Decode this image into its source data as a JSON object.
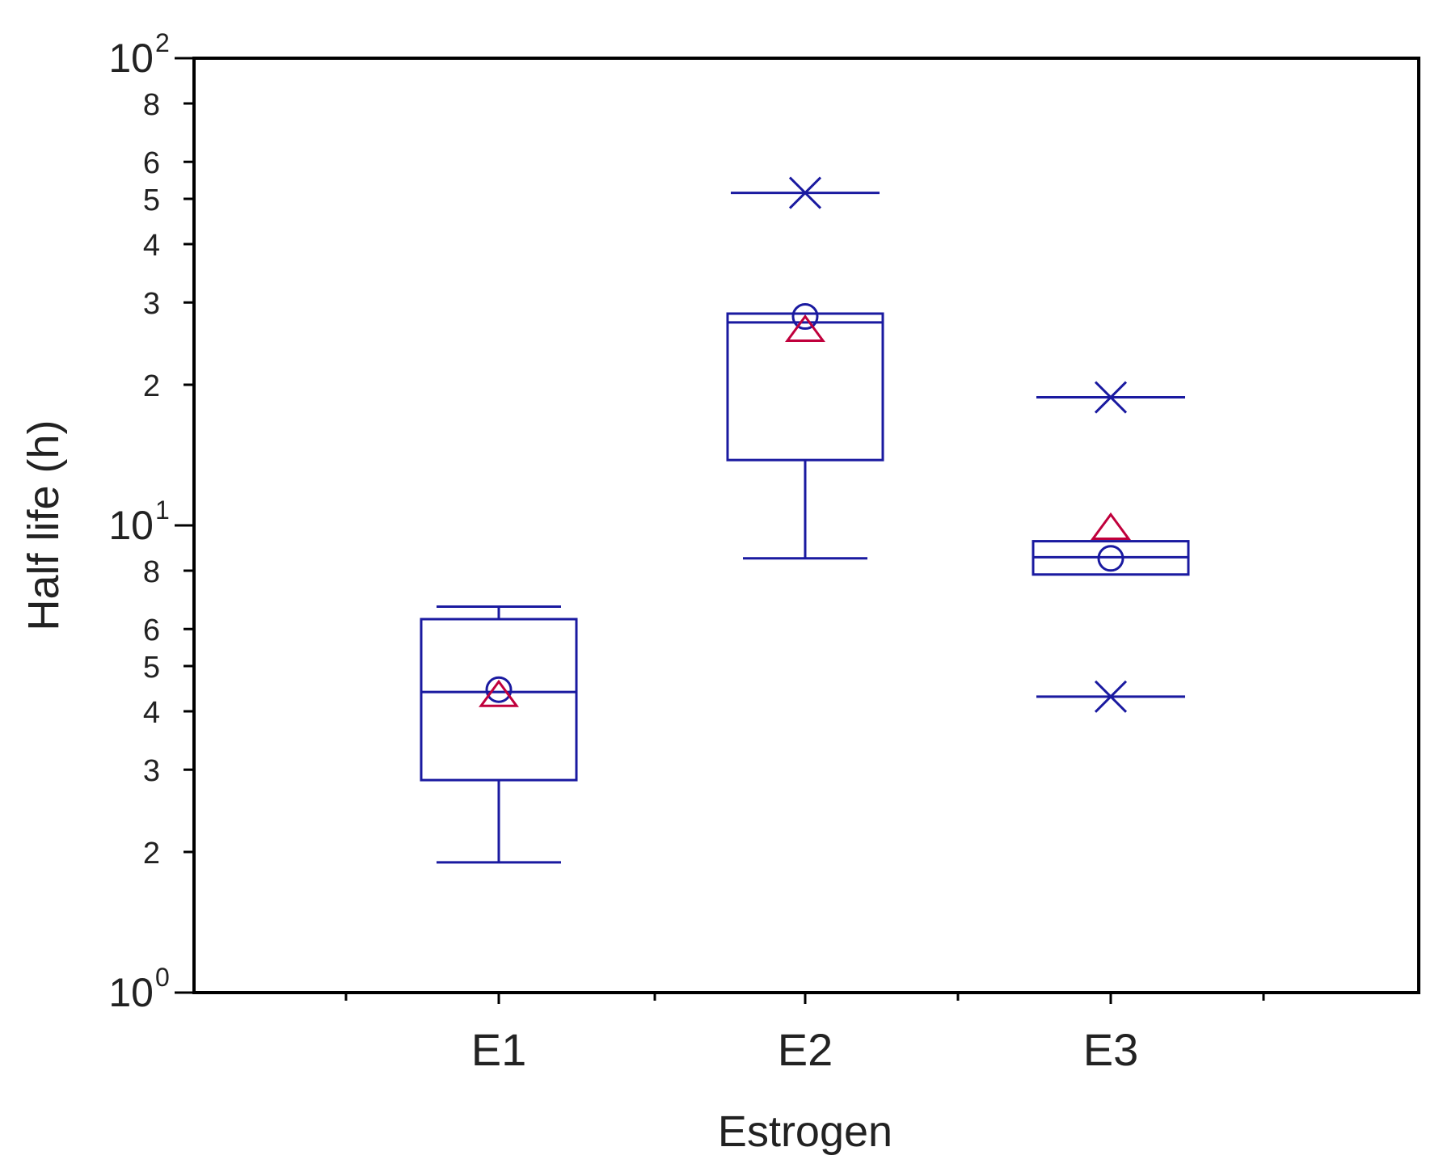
{
  "chart_data": {
    "type": "box",
    "xlabel": "Estrogen",
    "ylabel": "Half life (h)",
    "yscale": "log",
    "ylim": [
      1,
      100
    ],
    "y_major_ticks": [
      {
        "value": 1,
        "base": "10",
        "exp": "0"
      },
      {
        "value": 10,
        "base": "10",
        "exp": "1"
      },
      {
        "value": 100,
        "base": "10",
        "exp": "2"
      }
    ],
    "y_minor_ticks": [
      2,
      3,
      4,
      5,
      6,
      8,
      20,
      30,
      40,
      50,
      60,
      80
    ],
    "y_minor_labels": [
      {
        "value": 2,
        "label": "2"
      },
      {
        "value": 3,
        "label": "3"
      },
      {
        "value": 4,
        "label": "4"
      },
      {
        "value": 5,
        "label": "5"
      },
      {
        "value": 6,
        "label": "6"
      },
      {
        "value": 8,
        "label": "8"
      },
      {
        "value": 20,
        "label": "2"
      },
      {
        "value": 30,
        "label": "3"
      },
      {
        "value": 40,
        "label": "4"
      },
      {
        "value": 50,
        "label": "5"
      },
      {
        "value": 60,
        "label": "6"
      },
      {
        "value": 80,
        "label": "8"
      }
    ],
    "categories": [
      "E1",
      "E2",
      "E3"
    ],
    "boxes": [
      {
        "category": "E1",
        "whisker_low": 1.9,
        "q1": 2.85,
        "median": 4.4,
        "q3": 6.3,
        "whisker_high": 6.7,
        "mean": 4.3,
        "geo_mean": 4.45,
        "outliers": []
      },
      {
        "category": "E2",
        "whisker_low": 8.5,
        "q1": 13.8,
        "median": 27.2,
        "q3": 28.4,
        "whisker_high": null,
        "mean": 26.0,
        "geo_mean": 28.0,
        "outliers": [
          51.5
        ]
      },
      {
        "category": "E3",
        "whisker_low": null,
        "q1": 7.85,
        "median": 8.55,
        "q3": 9.25,
        "whisker_high": null,
        "mean": 9.8,
        "geo_mean": 8.5,
        "outliers": [
          18.8,
          4.3
        ]
      }
    ],
    "colors": {
      "box": "#1a1aa0",
      "mean_marker": "#c0003c",
      "axis": "#000000",
      "text": "#222222"
    },
    "grid": false,
    "legend": "none"
  }
}
